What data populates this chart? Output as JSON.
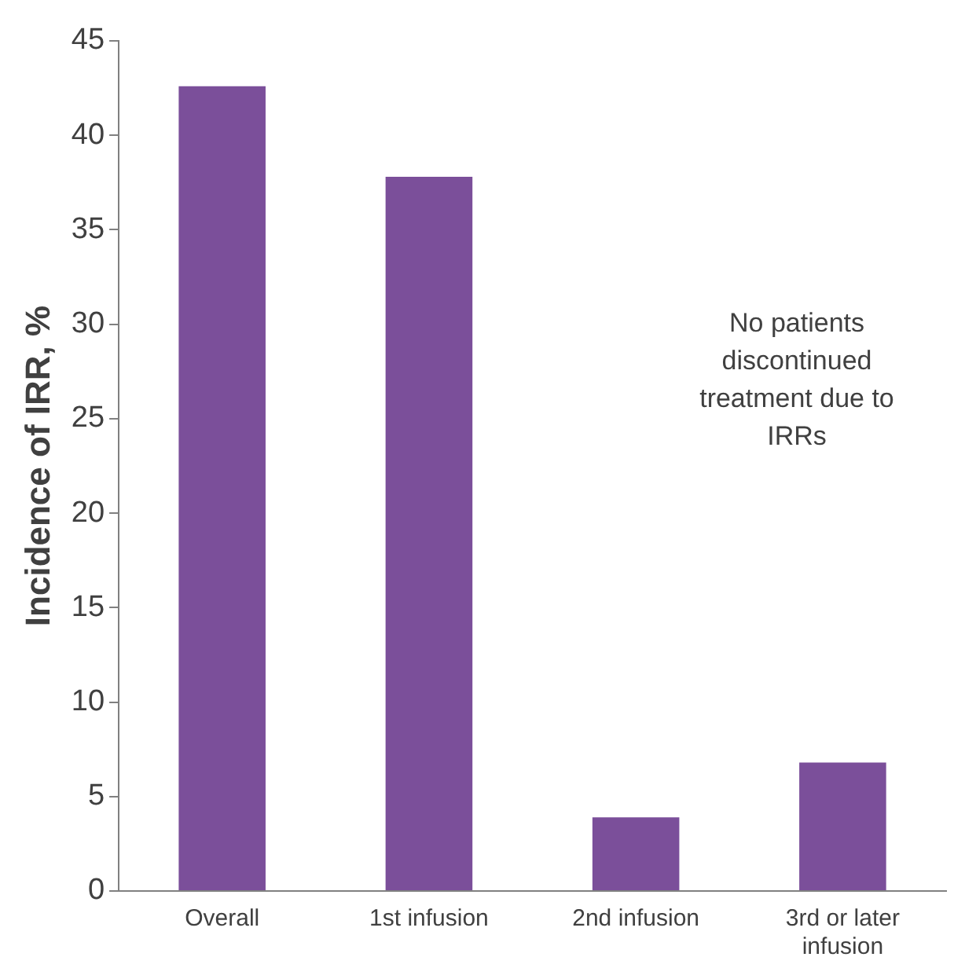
{
  "chart_data": {
    "type": "bar",
    "ylabel": "Incidence of IRR, %",
    "categories": [
      "Overall",
      "1st infusion",
      "2nd infusion",
      "3rd or later infusion"
    ],
    "values": [
      42.6,
      37.8,
      3.9,
      6.8
    ],
    "color": "#7b4f9a",
    "ylim": [
      0,
      45
    ],
    "yticks": [
      0,
      5,
      10,
      15,
      20,
      25,
      30,
      35,
      40,
      45
    ],
    "grid": false,
    "annotations": [
      "No patients discontinued treatment due to IRRs"
    ]
  }
}
